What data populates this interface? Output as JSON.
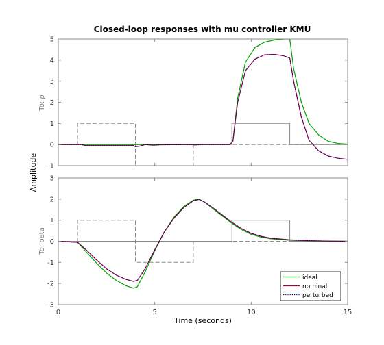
{
  "chart_data": {
    "type": "line",
    "title": "Closed-loop responses with mu controller KMU",
    "xlabel": "Time (seconds)",
    "ylabel": "Amplitude",
    "xlim": [
      0,
      15
    ],
    "xticks": [
      "0",
      "5",
      "10",
      "15"
    ],
    "grid": false,
    "legend_position": "bottom-right",
    "legend": [
      {
        "name": "ideal",
        "color": "#00a000",
        "style": "solid"
      },
      {
        "name": "nominal",
        "color": "#a0003c",
        "style": "solid"
      },
      {
        "name": "perturbed",
        "color": "#000080",
        "style": "dotted"
      }
    ],
    "panels": [
      {
        "ylabel": "To: ρ",
        "ylim": [
          -1,
          5
        ],
        "yticks": [
          "-1",
          "0",
          "1",
          "2",
          "3",
          "4",
          "5"
        ],
        "references": [
          {
            "style": "dashed",
            "color": "#8a8a8a",
            "x": [
              0,
              1,
              1,
              4,
              4,
              7,
              7,
              9,
              9,
              12,
              12,
              15
            ],
            "y": [
              0,
              0,
              1,
              1,
              -1,
              -1,
              0,
              0,
              0,
              0,
              0,
              0
            ]
          },
          {
            "style": "solid",
            "color": "#8a8a8a",
            "x": [
              0,
              9,
              9,
              12,
              12,
              15
            ],
            "y": [
              0,
              0,
              1,
              1,
              0,
              0
            ]
          }
        ],
        "series": [
          {
            "name": "ideal",
            "color": "#00a000",
            "x": [
              0,
              1.3,
              4,
              4.3,
              7,
              8.9,
              9.05,
              9.3,
              9.7,
              10.2,
              10.7,
              11.2,
              11.7,
              12.0,
              12.2,
              12.6,
              13.0,
              13.5,
              14.0,
              14.5,
              15
            ],
            "y": [
              0,
              0,
              0,
              0,
              0,
              0,
              0.15,
              2.2,
              3.9,
              4.6,
              4.85,
              4.95,
              5.0,
              5.0,
              3.6,
              2.0,
              1.0,
              0.45,
              0.15,
              0.05,
              0.02
            ]
          },
          {
            "name": "nominal",
            "color": "#a0003c",
            "x": [
              0,
              1.2,
              1.4,
              3.9,
              4.0,
              4.2,
              4.5,
              4.9,
              5.3,
              6.9,
              7.1,
              7.4,
              8.9,
              9.05,
              9.3,
              9.7,
              10.2,
              10.7,
              11.2,
              11.7,
              12.0,
              12.2,
              12.6,
              13.0,
              13.5,
              14.0,
              14.5,
              15
            ],
            "y": [
              0,
              0,
              -0.05,
              -0.05,
              -0.1,
              -0.08,
              0.0,
              -0.03,
              -0.01,
              0,
              -0.02,
              0,
              0,
              0.15,
              2.0,
              3.5,
              4.05,
              4.25,
              4.27,
              4.2,
              4.1,
              3.0,
              1.3,
              0.2,
              -0.3,
              -0.55,
              -0.65,
              -0.7
            ]
          },
          {
            "name": "perturbed",
            "color": "#000080",
            "x": [
              0,
              1.2,
              1.4,
              3.9,
              4.0,
              4.2,
              4.5,
              4.9,
              5.3,
              6.9,
              7.1,
              7.4,
              8.9,
              9.05,
              9.3,
              9.7,
              10.2,
              10.7,
              11.2,
              11.7,
              12.0,
              12.2,
              12.6,
              13.0,
              13.5,
              14.0,
              14.5,
              15
            ],
            "y": [
              0,
              0,
              -0.05,
              -0.05,
              -0.1,
              -0.08,
              0.0,
              -0.03,
              -0.01,
              0,
              -0.02,
              0,
              0,
              0.15,
              2.0,
              3.5,
              4.05,
              4.25,
              4.27,
              4.2,
              4.1,
              3.0,
              1.3,
              0.2,
              -0.3,
              -0.55,
              -0.65,
              -0.7
            ]
          }
        ]
      },
      {
        "ylabel": "To: beta",
        "ylim": [
          -3,
          3
        ],
        "yticks": [
          "-3",
          "-2",
          "-1",
          "0",
          "1",
          "2",
          "3"
        ],
        "references": [
          {
            "style": "dashed",
            "color": "#8a8a8a",
            "x": [
              0,
              1,
              1,
              4,
              4,
              7,
              7,
              9,
              9,
              12,
              12,
              15
            ],
            "y": [
              0,
              0,
              1,
              1,
              -1,
              -1,
              0,
              0,
              0,
              0,
              0,
              0
            ]
          },
          {
            "style": "solid",
            "color": "#8a8a8a",
            "x": [
              0,
              9,
              9,
              12,
              12,
              15
            ],
            "y": [
              0,
              0,
              1,
              1,
              0,
              0
            ]
          }
        ],
        "series": [
          {
            "name": "ideal",
            "color": "#00a000",
            "x": [
              0,
              1.0,
              1.5,
              2.0,
              2.5,
              3.0,
              3.5,
              3.9,
              4.1,
              4.5,
              5.0,
              5.5,
              6.0,
              6.5,
              7.0,
              7.3,
              7.6,
              8.0,
              8.5,
              9.0,
              9.5,
              10.0,
              10.5,
              11.0,
              12.0,
              13.0,
              14.0,
              15
            ],
            "y": [
              0,
              -0.05,
              -0.55,
              -1.05,
              -1.5,
              -1.85,
              -2.1,
              -2.22,
              -2.15,
              -1.45,
              -0.45,
              0.45,
              1.15,
              1.65,
              1.95,
              2.0,
              1.85,
              1.55,
              1.2,
              0.85,
              0.55,
              0.33,
              0.2,
              0.12,
              0.05,
              0.02,
              0.01,
              0
            ]
          },
          {
            "name": "nominal",
            "color": "#a0003c",
            "x": [
              0,
              1.0,
              1.5,
              2.0,
              2.5,
              3.0,
              3.5,
              3.9,
              4.1,
              4.5,
              5.0,
              5.5,
              6.0,
              6.5,
              7.0,
              7.3,
              7.6,
              8.0,
              8.5,
              9.0,
              9.5,
              10.0,
              10.5,
              11.0,
              12.0,
              13.0,
              14.0,
              15
            ],
            "y": [
              0,
              -0.05,
              -0.45,
              -0.9,
              -1.3,
              -1.6,
              -1.8,
              -1.9,
              -1.85,
              -1.3,
              -0.4,
              0.45,
              1.1,
              1.6,
              1.92,
              1.98,
              1.85,
              1.6,
              1.25,
              0.9,
              0.6,
              0.38,
              0.24,
              0.15,
              0.07,
              0.03,
              0.01,
              0
            ]
          },
          {
            "name": "perturbed",
            "color": "#000080",
            "x": [
              0,
              1.0,
              1.5,
              2.0,
              2.5,
              3.0,
              3.5,
              3.9,
              4.1,
              4.5,
              5.0,
              5.5,
              6.0,
              6.5,
              7.0,
              7.3,
              7.6,
              8.0,
              8.5,
              9.0,
              9.5,
              10.0,
              10.5,
              11.0,
              12.0,
              13.0,
              14.0,
              15
            ],
            "y": [
              0,
              -0.05,
              -0.45,
              -0.9,
              -1.3,
              -1.6,
              -1.8,
              -1.9,
              -1.85,
              -1.3,
              -0.4,
              0.45,
              1.1,
              1.6,
              1.92,
              1.98,
              1.85,
              1.6,
              1.25,
              0.9,
              0.6,
              0.38,
              0.24,
              0.15,
              0.07,
              0.03,
              0.01,
              0
            ]
          }
        ]
      }
    ]
  }
}
